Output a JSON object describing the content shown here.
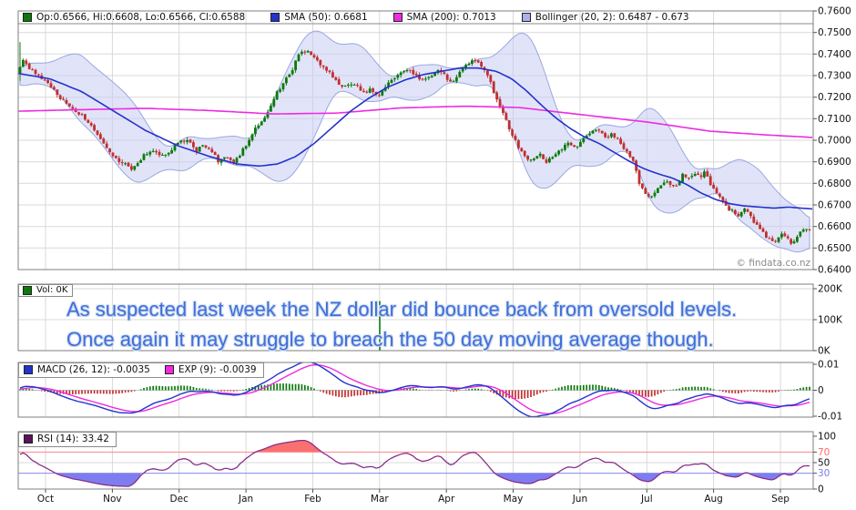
{
  "watermark": "© findata.co.nz",
  "annotation": {
    "line1": "As suspected last week the NZ dollar did bounce back from oversold levels.",
    "line2": "Once again it may struggle to breach the 50 day moving average though."
  },
  "legends": {
    "main": {
      "ohlc": "Op:0.6566, Hi:0.6608, Lo:0.6566, Cl:0.6588",
      "sma50": "SMA (50): 0.6681",
      "sma200": "SMA (200): 0.7013",
      "bollinger": "Bollinger (20, 2): 0.6487 - 0.673"
    },
    "volume": "Vol: 0K",
    "macd": "MACD (26, 12): -0.0035",
    "exp": "EXP (9): -0.0039",
    "rsi": "RSI (14): 33.42"
  },
  "colors": {
    "up": "#0b7a0b",
    "down": "#c03030",
    "sma50": "#2333cc",
    "sma200": "#ee2ae2",
    "bollinger_fill": "#c9cdf2",
    "bollinger_edge": "#9aa6e2",
    "macd": "#2333cc",
    "macd_signal": "#ee2ae2",
    "rsi": "#8b2f8b",
    "rsi_fill_high": "#f87070",
    "rsi_fill_low": "#7d7df0",
    "overbought_line": "#ff8585",
    "oversold_line": "#8585f0",
    "annotation": "#3f6fd6",
    "volume": "#0b7a0b",
    "grid": "#d9d9d9",
    "border": "#7f7f7f"
  },
  "chart_data": [
    {
      "type": "candlestick",
      "title": "NZ dollar daily price with SMA(50), SMA(200) and Bollinger(20,2)",
      "ylim": [
        0.64,
        0.76
      ],
      "y_tick_labels": [
        "0.7600",
        "0.7500",
        "0.7400",
        "0.7300",
        "0.7200",
        "0.7100",
        "0.7000",
        "0.6900",
        "0.6800",
        "0.6700",
        "0.6600",
        "0.6500",
        "0.6400"
      ],
      "x_labels": [
        "Oct",
        "Nov",
        "Dec",
        "Jan",
        "Feb",
        "Mar",
        "Apr",
        "May",
        "Jun",
        "Jul",
        "Aug",
        "Sep"
      ],
      "last_values": {
        "open": 0.6566,
        "high": 0.6608,
        "low": 0.6566,
        "close": 0.6588,
        "sma50": 0.6681,
        "sma200": 0.7013,
        "bollinger_lower": 0.6487,
        "bollinger_upper": 0.673
      },
      "first_candle": {
        "x": 21,
        "high": 0.7455,
        "low": 0.7275
      },
      "close_anchors": [
        [
          -60,
          0.724
        ],
        [
          -48,
          0.73
        ],
        [
          -36,
          0.726
        ],
        [
          -24,
          0.732
        ],
        [
          -12,
          0.728
        ],
        [
          20,
          0.731
        ],
        [
          26,
          0.738
        ],
        [
          32,
          0.733
        ],
        [
          40,
          0.731
        ],
        [
          48,
          0.728
        ],
        [
          56,
          0.725
        ],
        [
          64,
          0.721
        ],
        [
          72,
          0.717
        ],
        [
          80,
          0.715
        ],
        [
          88,
          0.712
        ],
        [
          96,
          0.709
        ],
        [
          104,
          0.704
        ],
        [
          112,
          0.699
        ],
        [
          120,
          0.695
        ],
        [
          128,
          0.6915
        ],
        [
          136,
          0.689
        ],
        [
          144,
          0.6865
        ],
        [
          152,
          0.689
        ],
        [
          160,
          0.694
        ],
        [
          168,
          0.695
        ],
        [
          176,
          0.692
        ],
        [
          184,
          0.694
        ],
        [
          192,
          0.697
        ],
        [
          200,
          0.7
        ],
        [
          208,
          0.699
        ],
        [
          216,
          0.695
        ],
        [
          224,
          0.698
        ],
        [
          232,
          0.695
        ],
        [
          240,
          0.69
        ],
        [
          248,
          0.692
        ],
        [
          256,
          0.689
        ],
        [
          264,
          0.694
        ],
        [
          272,
          0.699
        ],
        [
          280,
          0.705
        ],
        [
          288,
          0.709
        ],
        [
          296,
          0.715
        ],
        [
          304,
          0.722
        ],
        [
          312,
          0.727
        ],
        [
          320,
          0.732
        ],
        [
          328,
          0.74
        ],
        [
          336,
          0.742
        ],
        [
          344,
          0.739
        ],
        [
          352,
          0.735
        ],
        [
          360,
          0.732
        ],
        [
          368,
          0.728
        ],
        [
          376,
          0.724
        ],
        [
          384,
          0.727
        ],
        [
          392,
          0.725
        ],
        [
          400,
          0.722
        ],
        [
          408,
          0.724
        ],
        [
          416,
          0.72
        ],
        [
          424,
          0.725
        ],
        [
          432,
          0.729
        ],
        [
          440,
          0.732
        ],
        [
          448,
          0.733
        ],
        [
          456,
          0.73
        ],
        [
          464,
          0.728
        ],
        [
          472,
          0.73
        ],
        [
          480,
          0.732
        ],
        [
          488,
          0.73
        ],
        [
          496,
          0.727
        ],
        [
          504,
          0.731
        ],
        [
          512,
          0.735
        ],
        [
          520,
          0.738
        ],
        [
          528,
          0.735
        ],
        [
          536,
          0.73
        ],
        [
          544,
          0.72
        ],
        [
          552,
          0.713
        ],
        [
          560,
          0.705
        ],
        [
          568,
          0.698
        ],
        [
          576,
          0.693
        ],
        [
          584,
          0.69
        ],
        [
          592,
          0.694
        ],
        [
          600,
          0.69
        ],
        [
          608,
          0.692
        ],
        [
          616,
          0.696
        ],
        [
          624,
          0.699
        ],
        [
          632,
          0.697
        ],
        [
          640,
          0.7
        ],
        [
          648,
          0.703
        ],
        [
          656,
          0.705
        ],
        [
          664,
          0.701
        ],
        [
          672,
          0.703
        ],
        [
          680,
          0.699
        ],
        [
          688,
          0.695
        ],
        [
          696,
          0.69
        ],
        [
          702,
          0.68
        ],
        [
          708,
          0.676
        ],
        [
          714,
          0.674
        ],
        [
          720,
          0.676
        ],
        [
          726,
          0.679
        ],
        [
          732,
          0.681
        ],
        [
          738,
          0.678
        ],
        [
          744,
          0.68
        ],
        [
          750,
          0.684
        ],
        [
          756,
          0.682
        ],
        [
          762,
          0.685
        ],
        [
          768,
          0.683
        ],
        [
          774,
          0.685
        ],
        [
          780,
          0.68
        ],
        [
          786,
          0.676
        ],
        [
          792,
          0.672
        ],
        [
          798,
          0.669
        ],
        [
          804,
          0.667
        ],
        [
          810,
          0.665
        ],
        [
          816,
          0.668
        ],
        [
          822,
          0.666
        ],
        [
          828,
          0.662
        ],
        [
          834,
          0.659
        ],
        [
          840,
          0.656
        ],
        [
          846,
          0.654
        ],
        [
          852,
          0.6525
        ],
        [
          858,
          0.656
        ],
        [
          864,
          0.6545
        ],
        [
          870,
          0.652
        ],
        [
          876,
          0.656
        ],
        [
          882,
          0.658
        ],
        [
          888,
          0.6588
        ]
      ],
      "sma50_anchors": [
        [
          20,
          0.731
        ],
        [
          55,
          0.7285
        ],
        [
          90,
          0.7225
        ],
        [
          125,
          0.7135
        ],
        [
          160,
          0.7045
        ],
        [
          195,
          0.6975
        ],
        [
          230,
          0.6925
        ],
        [
          260,
          0.689
        ],
        [
          285,
          0.688
        ],
        [
          305,
          0.689
        ],
        [
          325,
          0.6925
        ],
        [
          345,
          0.6985
        ],
        [
          365,
          0.706
        ],
        [
          385,
          0.7135
        ],
        [
          405,
          0.7195
        ],
        [
          425,
          0.7245
        ],
        [
          445,
          0.728
        ],
        [
          465,
          0.7305
        ],
        [
          485,
          0.732
        ],
        [
          505,
          0.7335
        ],
        [
          525,
          0.7335
        ],
        [
          545,
          0.732
        ],
        [
          562,
          0.7285
        ],
        [
          578,
          0.723
        ],
        [
          594,
          0.7165
        ],
        [
          610,
          0.7105
        ],
        [
          626,
          0.7055
        ],
        [
          642,
          0.7015
        ],
        [
          658,
          0.6985
        ],
        [
          674,
          0.6945
        ],
        [
          690,
          0.6905
        ],
        [
          706,
          0.687
        ],
        [
          722,
          0.6845
        ],
        [
          738,
          0.6825
        ],
        [
          754,
          0.6795
        ],
        [
          770,
          0.6755
        ],
        [
          786,
          0.6725
        ],
        [
          802,
          0.6705
        ],
        [
          818,
          0.6695
        ],
        [
          834,
          0.669
        ],
        [
          850,
          0.6685
        ],
        [
          866,
          0.669
        ],
        [
          880,
          0.6685
        ],
        [
          893,
          0.6681
        ]
      ],
      "sma200_anchors": [
        [
          20,
          0.7135
        ],
        [
          90,
          0.7142
        ],
        [
          160,
          0.7148
        ],
        [
          230,
          0.7138
        ],
        [
          300,
          0.7122
        ],
        [
          370,
          0.7126
        ],
        [
          440,
          0.715
        ],
        [
          510,
          0.7158
        ],
        [
          570,
          0.7152
        ],
        [
          640,
          0.7118
        ],
        [
          710,
          0.7085
        ],
        [
          780,
          0.7042
        ],
        [
          840,
          0.7025
        ],
        [
          893,
          0.7013
        ]
      ]
    },
    {
      "type": "bar",
      "name": "volume",
      "ylim": [
        0,
        200000
      ],
      "y_ticks": [
        {
          "label": "200K",
          "v": 200000
        },
        {
          "label": "100K",
          "v": 100000
        },
        {
          "label": "0K",
          "v": 0
        }
      ],
      "baseline_value": 0,
      "spike": {
        "x": 417,
        "value": 160000
      }
    },
    {
      "type": "line",
      "name": "macd",
      "ylim": [
        -0.01,
        0.01
      ],
      "y_ticks": [
        {
          "label": "0.01",
          "v": 0.01
        },
        {
          "label": "0",
          "v": 0
        },
        {
          "label": "-0.01",
          "v": -0.01
        }
      ],
      "last": {
        "macd": -0.0035,
        "signal": -0.0039
      }
    },
    {
      "type": "line",
      "name": "rsi",
      "ylim": [
        0,
        100
      ],
      "y_ticks": [
        {
          "label": "100",
          "v": 100
        },
        {
          "label": "70",
          "v": 70,
          "color": "#ff6b6b"
        },
        {
          "label": "50",
          "v": 50
        },
        {
          "label": "30",
          "v": 30,
          "color": "#7b7bee"
        },
        {
          "label": "0",
          "v": 0
        }
      ],
      "overbought": 70,
      "oversold": 30,
      "last": 33.42
    }
  ]
}
